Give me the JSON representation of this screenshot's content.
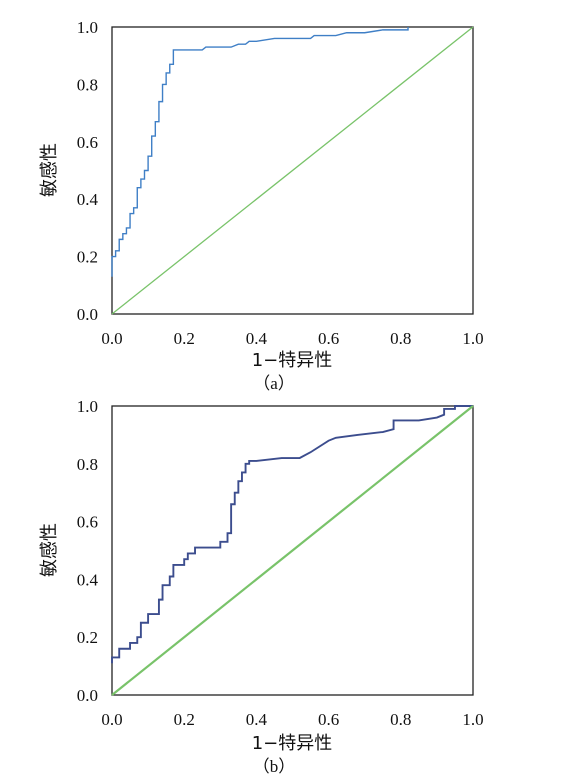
{
  "chart_data": [
    {
      "type": "line",
      "caption": "（a）",
      "xlabel": "1−特异性",
      "ylabel": "敏感性",
      "xlim": [
        0,
        1
      ],
      "ylim": [
        0,
        1
      ],
      "x_ticks": [
        "0.0",
        "0.2",
        "0.4",
        "0.6",
        "0.8",
        "1.0"
      ],
      "y_ticks": [
        "0.0",
        "0.2",
        "0.4",
        "0.6",
        "0.8",
        "1.0"
      ],
      "grid": false,
      "colors": {
        "roc": "#3f7fc6",
        "reference": "#79c36a"
      },
      "series": [
        {
          "role": "roc",
          "x": [
            0.0,
            0.0,
            0.01,
            0.01,
            0.02,
            0.02,
            0.03,
            0.03,
            0.04,
            0.04,
            0.05,
            0.05,
            0.06,
            0.06,
            0.07,
            0.07,
            0.08,
            0.08,
            0.09,
            0.09,
            0.1,
            0.1,
            0.11,
            0.11,
            0.12,
            0.12,
            0.13,
            0.13,
            0.14,
            0.14,
            0.15,
            0.15,
            0.16,
            0.16,
            0.17,
            0.17,
            0.18,
            0.25,
            0.26,
            0.27,
            0.33,
            0.35,
            0.37,
            0.38,
            0.4,
            0.45,
            0.55,
            0.56,
            0.62,
            0.65,
            0.7,
            0.75,
            0.82,
            0.82
          ],
          "y": [
            0.13,
            0.2,
            0.2,
            0.22,
            0.22,
            0.26,
            0.26,
            0.28,
            0.28,
            0.3,
            0.3,
            0.35,
            0.35,
            0.37,
            0.37,
            0.44,
            0.44,
            0.47,
            0.47,
            0.5,
            0.5,
            0.55,
            0.55,
            0.62,
            0.62,
            0.67,
            0.67,
            0.74,
            0.74,
            0.8,
            0.8,
            0.84,
            0.84,
            0.87,
            0.87,
            0.92,
            0.92,
            0.92,
            0.93,
            0.93,
            0.93,
            0.94,
            0.94,
            0.95,
            0.95,
            0.96,
            0.96,
            0.97,
            0.97,
            0.98,
            0.98,
            0.99,
            0.99,
            1.0
          ]
        },
        {
          "role": "reference",
          "x": [
            0,
            1
          ],
          "y": [
            0,
            1
          ]
        }
      ]
    },
    {
      "type": "line",
      "caption": "（b）",
      "xlabel": "1−特异性",
      "ylabel": "敏感性",
      "xlim": [
        0,
        1
      ],
      "ylim": [
        0,
        1
      ],
      "x_ticks": [
        "0.0",
        "0.2",
        "0.4",
        "0.6",
        "0.8",
        "1.0"
      ],
      "y_ticks": [
        "0.0",
        "0.2",
        "0.4",
        "0.6",
        "0.8",
        "1.0"
      ],
      "grid": false,
      "colors": {
        "roc": "#3c4d8e",
        "reference": "#79c36a"
      },
      "series": [
        {
          "role": "roc",
          "x": [
            0.0,
            0.0,
            0.02,
            0.02,
            0.05,
            0.05,
            0.07,
            0.07,
            0.08,
            0.08,
            0.1,
            0.1,
            0.13,
            0.13,
            0.14,
            0.14,
            0.16,
            0.16,
            0.17,
            0.17,
            0.2,
            0.2,
            0.21,
            0.21,
            0.23,
            0.23,
            0.24,
            0.24,
            0.3,
            0.3,
            0.32,
            0.32,
            0.33,
            0.33,
            0.34,
            0.34,
            0.35,
            0.35,
            0.36,
            0.36,
            0.37,
            0.37,
            0.38,
            0.38,
            0.4,
            0.47,
            0.52,
            0.55,
            0.6,
            0.62,
            0.68,
            0.75,
            0.78,
            0.78,
            0.85,
            0.9,
            0.92,
            0.92,
            0.95,
            0.95,
            1.0
          ],
          "y": [
            0.11,
            0.13,
            0.13,
            0.16,
            0.16,
            0.18,
            0.18,
            0.2,
            0.2,
            0.25,
            0.25,
            0.28,
            0.28,
            0.33,
            0.33,
            0.38,
            0.38,
            0.41,
            0.41,
            0.45,
            0.45,
            0.47,
            0.47,
            0.49,
            0.49,
            0.51,
            0.51,
            0.51,
            0.51,
            0.53,
            0.53,
            0.56,
            0.56,
            0.66,
            0.66,
            0.7,
            0.7,
            0.74,
            0.74,
            0.77,
            0.77,
            0.8,
            0.8,
            0.81,
            0.81,
            0.82,
            0.82,
            0.84,
            0.88,
            0.89,
            0.9,
            0.91,
            0.92,
            0.95,
            0.95,
            0.96,
            0.97,
            0.99,
            0.99,
            1.0,
            1.0
          ]
        },
        {
          "role": "reference",
          "x": [
            0,
            1
          ],
          "y": [
            0,
            1
          ]
        }
      ]
    }
  ]
}
